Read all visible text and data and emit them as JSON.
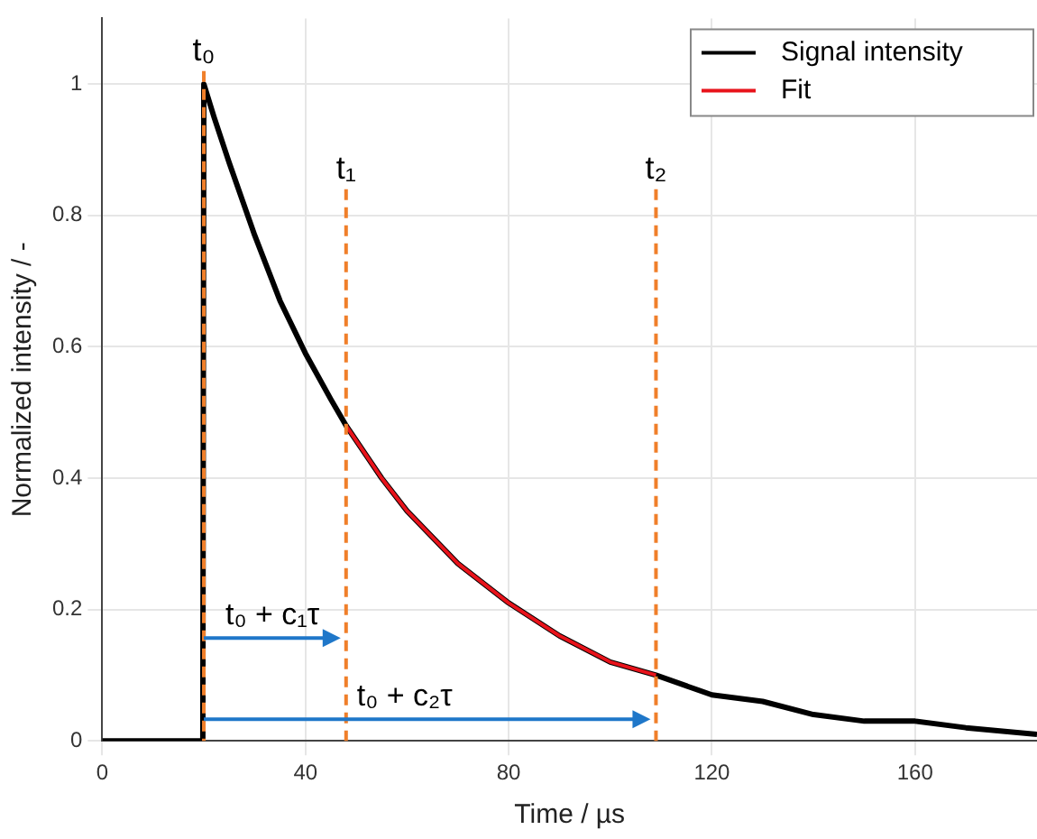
{
  "chart_data": {
    "type": "line",
    "xlabel": "Time / µs",
    "ylabel": "Normalized intensity / -",
    "xlim": [
      0,
      184
    ],
    "ylim": [
      0,
      1.1
    ],
    "xticks": [
      0,
      40,
      80,
      120,
      160
    ],
    "yticks": [
      0,
      0.2,
      0.4,
      0.6,
      0.8,
      1
    ],
    "grid": true,
    "legend": "top right",
    "marker": "none",
    "line_style": "solid",
    "series": [
      {
        "name": "Signal intensity",
        "color": "#000000",
        "x": [
          0,
          19.8,
          20,
          22,
          25,
          30,
          35,
          40,
          45,
          48,
          55,
          60,
          70,
          80,
          90,
          100,
          109,
          120,
          130,
          140,
          150,
          160,
          170,
          184
        ],
        "values": [
          0,
          0,
          1,
          0.95,
          0.88,
          0.77,
          0.67,
          0.59,
          0.52,
          0.48,
          0.4,
          0.35,
          0.27,
          0.21,
          0.16,
          0.12,
          0.1,
          0.07,
          0.06,
          0.04,
          0.03,
          0.03,
          0.02,
          0.01
        ]
      },
      {
        "name": "Fit",
        "color": "#e8131b",
        "x": [
          48,
          55,
          60,
          70,
          80,
          90,
          100,
          109
        ],
        "values": [
          0.48,
          0.4,
          0.35,
          0.27,
          0.21,
          0.16,
          0.12,
          0.1
        ]
      }
    ],
    "ref_lines": [
      {
        "axis": "x",
        "value": 20,
        "label": "t₀",
        "color": "#f07f2a",
        "line_style": "dashed"
      },
      {
        "axis": "x",
        "value": 48,
        "label": "t₁",
        "color": "#f07f2a",
        "line_style": "dashed"
      },
      {
        "axis": "x",
        "value": 109,
        "label": "t₂",
        "color": "#f07f2a",
        "line_style": "dashed"
      }
    ],
    "annotations": [
      "t₀ + c₁τ",
      "t₀ + c₂τ"
    ]
  }
}
